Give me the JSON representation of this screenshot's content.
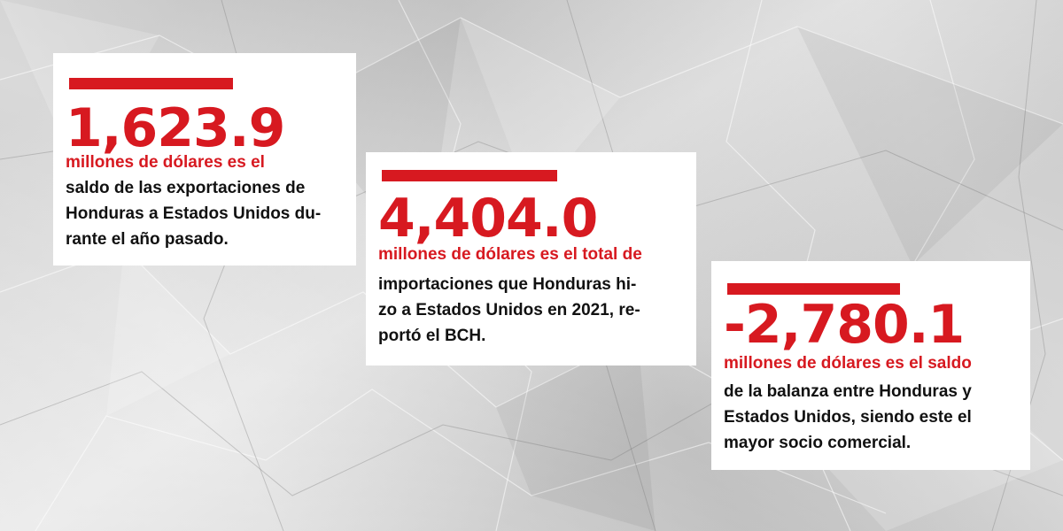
{
  "cards": [
    {
      "figure": "1,623.9",
      "lead": "millones de dólares es el",
      "lines": [
        "saldo de las exportaciones de",
        "Honduras a Estados Unidos du-",
        "rante el año pasado."
      ]
    },
    {
      "figure": "4,404.0",
      "lead": "millones de dólares es el total de",
      "lines": [
        "importaciones que Honduras hi-",
        "zo a Estados Unidos en 2021, re-",
        "portó el BCH."
      ]
    },
    {
      "figure": "-2,780.1",
      "lead": "millones de dólares es el saldo",
      "lines": [
        "de la balanza entre Honduras y",
        "Estados Unidos, siendo este el",
        "mayor socio comercial."
      ]
    }
  ],
  "colors": {
    "accent": "#d71920",
    "text": "#111111",
    "card": "#ffffff",
    "background": "#d6d6d6"
  }
}
